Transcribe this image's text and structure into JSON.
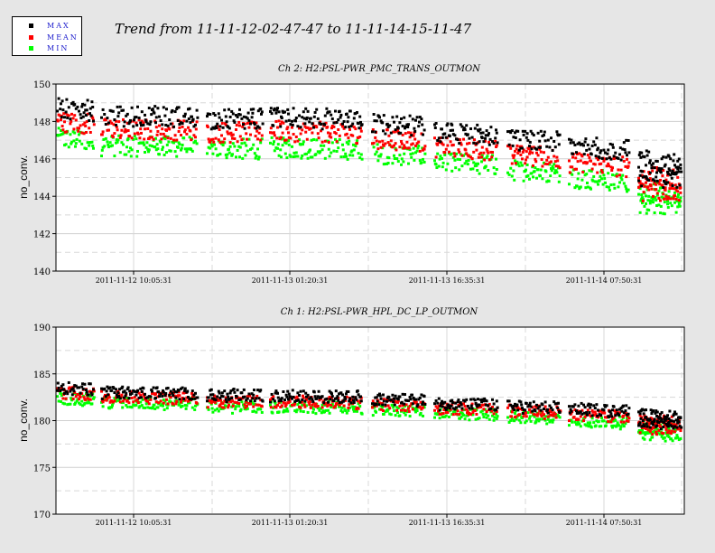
{
  "title": "Trend from 11-11-12-02-47-47 to 11-11-14-15-11-47",
  "legend": [
    {
      "label": "MAX",
      "color": "#000000"
    },
    {
      "label": "MEAN",
      "color": "#ff0000"
    },
    {
      "label": "MIN",
      "color": "#00ff00"
    }
  ],
  "chart_data": [
    {
      "type": "scatter",
      "title": "Ch 2: H2:PSL-PWR_PMC_TRANS_OUTMON",
      "ylabel": "no_conv.",
      "ylim": [
        140,
        150
      ],
      "yticks": [
        140,
        142,
        144,
        146,
        148,
        150
      ],
      "xlabels": [
        "2011-11-12 10:05:31",
        "2011-11-13 01:20:31",
        "2011-11-13 16:35:31",
        "2011-11-14 07:50:31"
      ],
      "grid": true,
      "series": [
        {
          "name": "MAX",
          "color": "#000000",
          "x": [
            0,
            1,
            2,
            3,
            4,
            5,
            6,
            7,
            8,
            9
          ],
          "values": [
            148.7,
            148.3,
            148.1,
            148.2,
            147.9,
            147.4,
            147.0,
            146.7,
            146.0,
            145.0
          ]
        },
        {
          "name": "MEAN",
          "color": "#ff0000",
          "x": [
            0,
            1,
            2,
            3,
            4,
            5,
            6,
            7,
            8,
            9
          ],
          "values": [
            148.0,
            147.6,
            147.4,
            147.5,
            147.1,
            146.6,
            146.2,
            145.8,
            145.1,
            144.3
          ]
        },
        {
          "name": "MIN",
          "color": "#00ff00",
          "x": [
            0,
            1,
            2,
            3,
            4,
            5,
            6,
            7,
            8,
            9
          ],
          "values": [
            147.1,
            146.7,
            146.5,
            146.6,
            146.3,
            145.8,
            145.4,
            145.0,
            144.3,
            143.6
          ]
        }
      ]
    },
    {
      "type": "scatter",
      "title": "Ch 1: H2:PSL-PWR_HPL_DC_LP_OUTMON",
      "ylabel": "no_conv.",
      "ylim": [
        170,
        190
      ],
      "yticks": [
        170,
        175,
        180,
        185,
        190
      ],
      "xlabels": [
        "2011-11-12 10:05:31",
        "2011-11-13 01:20:31",
        "2011-11-13 16:35:31",
        "2011-11-14 07:50:31"
      ],
      "grid": true,
      "series": [
        {
          "name": "MAX",
          "color": "#000000",
          "x": [
            0,
            1,
            2,
            3,
            4,
            5,
            6,
            7,
            8,
            9
          ],
          "values": [
            183.5,
            183.0,
            182.7,
            182.6,
            182.3,
            181.8,
            181.5,
            181.2,
            180.6,
            179.8
          ]
        },
        {
          "name": "MEAN",
          "color": "#ff0000",
          "x": [
            0,
            1,
            2,
            3,
            4,
            5,
            6,
            7,
            8,
            9
          ],
          "values": [
            183.0,
            182.5,
            182.1,
            182.0,
            181.7,
            181.3,
            181.0,
            180.6,
            180.0,
            179.2
          ]
        },
        {
          "name": "MIN",
          "color": "#00ff00",
          "x": [
            0,
            1,
            2,
            3,
            4,
            5,
            6,
            7,
            8,
            9
          ],
          "values": [
            182.4,
            181.9,
            181.5,
            181.4,
            181.2,
            180.7,
            180.4,
            180.0,
            179.3,
            178.5
          ]
        }
      ]
    }
  ]
}
